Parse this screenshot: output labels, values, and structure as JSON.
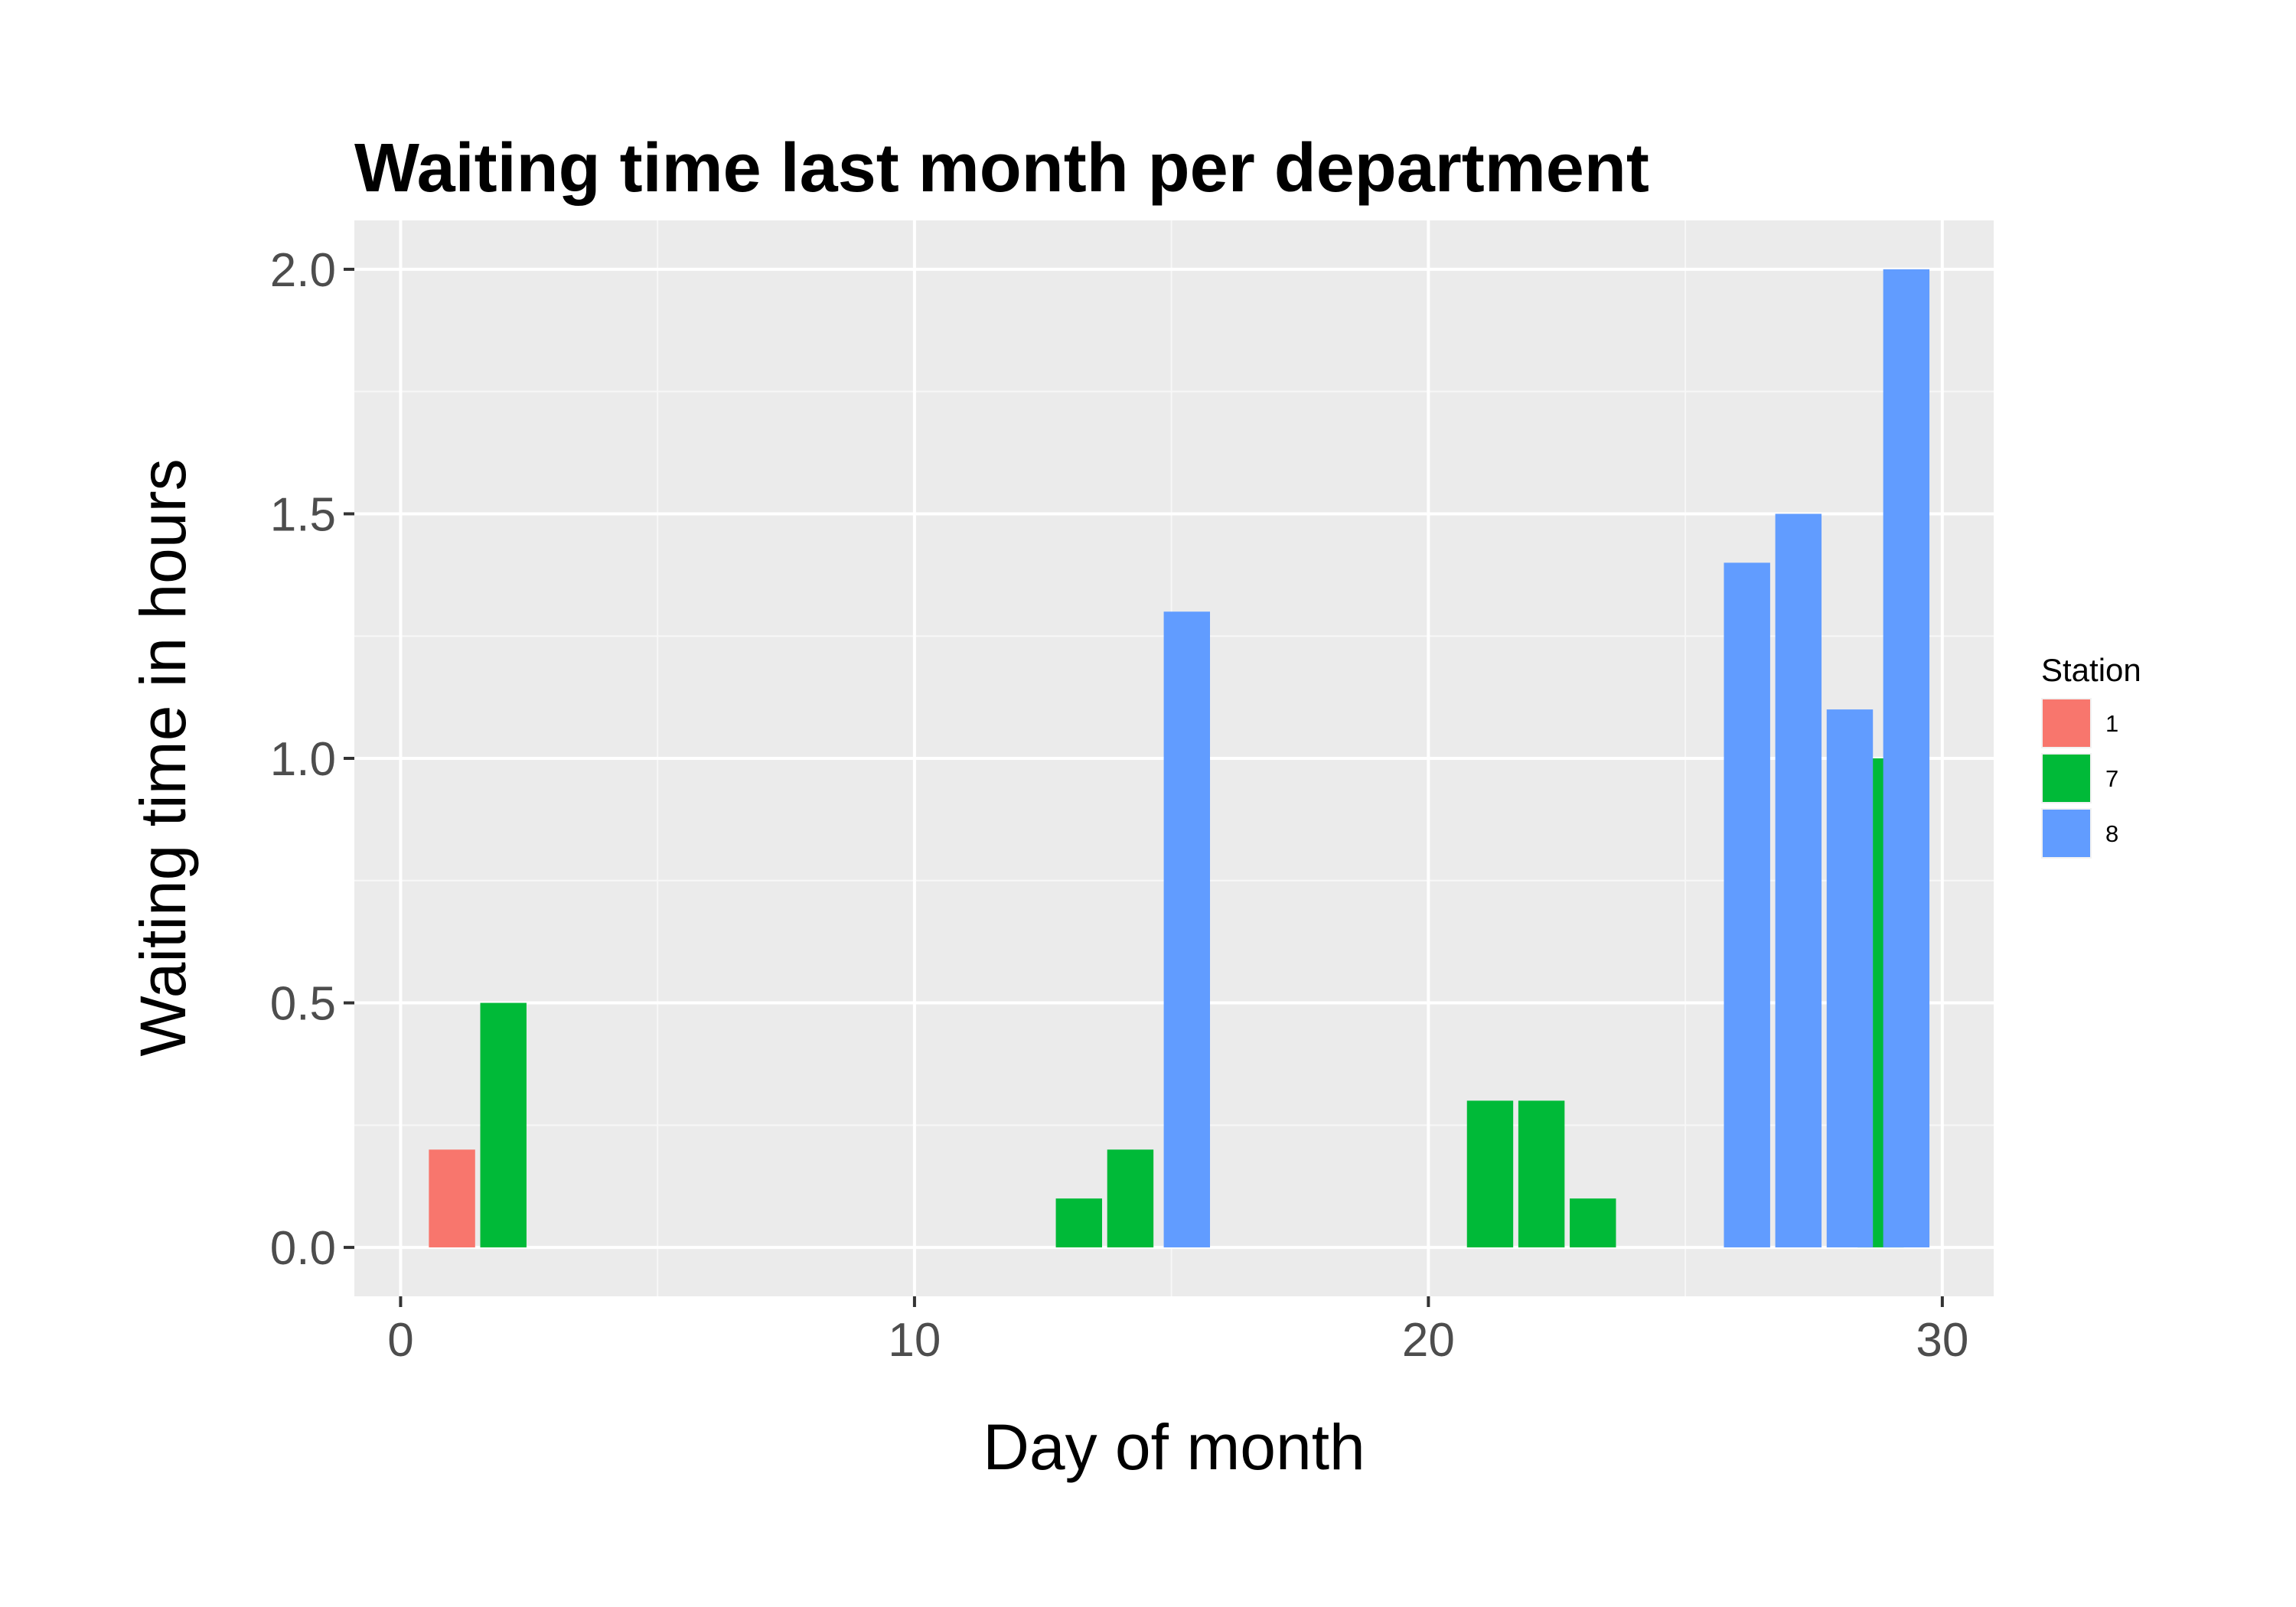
{
  "chart_data": {
    "type": "bar",
    "title": "Waiting time last month per department",
    "xlabel": "Day of month",
    "ylabel": "Waiting time in hours",
    "xlim": [
      -0.9,
      31.0
    ],
    "ylim": [
      -0.1,
      2.1
    ],
    "x_ticks": [
      0,
      10,
      20,
      30
    ],
    "x_tick_labels": [
      "0",
      "10",
      "20",
      "30"
    ],
    "y_ticks": [
      0.0,
      0.5,
      1.0,
      1.5,
      2.0
    ],
    "y_tick_labels": [
      "0.0",
      "0.5",
      "1.0",
      "1.5",
      "2.0"
    ],
    "grid": true,
    "background": "#ebebeb",
    "legend": {
      "title": "Station",
      "position": "right",
      "items": [
        {
          "label": "1",
          "color": "#f8766d"
        },
        {
          "label": "7",
          "color": "#00ba38"
        },
        {
          "label": "8",
          "color": "#619cff"
        }
      ]
    },
    "series": [
      {
        "name": "1",
        "color": "#f8766d",
        "bars": [
          {
            "x": 1.0,
            "value": 0.2
          }
        ]
      },
      {
        "name": "7",
        "color": "#00ba38",
        "bars": [
          {
            "x": 2.0,
            "value": 0.5
          },
          {
            "x": 13.2,
            "value": 0.1
          },
          {
            "x": 14.2,
            "value": 0.2
          },
          {
            "x": 21.2,
            "value": 0.3
          },
          {
            "x": 22.2,
            "value": 0.3
          },
          {
            "x": 23.2,
            "value": 0.1
          },
          {
            "x": 28.8,
            "value": 1.0
          }
        ]
      },
      {
        "name": "8",
        "color": "#619cff",
        "bars": [
          {
            "x": 15.3,
            "value": 1.3
          },
          {
            "x": 26.2,
            "value": 1.4
          },
          {
            "x": 27.2,
            "value": 1.5
          },
          {
            "x": 28.2,
            "value": 1.1
          },
          {
            "x": 29.3,
            "value": 2.0
          }
        ]
      }
    ]
  }
}
